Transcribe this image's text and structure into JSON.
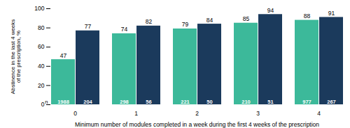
{
  "chart_data": {
    "type": "bar",
    "xlabel": "Minimum number of modules completed in a week during the first 4 weeks of the prescription",
    "ylabel": "Abstinence in the last 4 weeks\nof the prescription, %",
    "categories": [
      "0",
      "1",
      "2",
      "3",
      "4"
    ],
    "series": [
      {
        "color": "#3cb99a",
        "values": [
          47,
          74,
          79,
          85,
          88
        ],
        "n": [
          1988,
          298,
          221,
          210,
          977
        ]
      },
      {
        "color": "#1b3a5c",
        "values": [
          77,
          82,
          84,
          94,
          91
        ],
        "n": [
          204,
          56,
          50,
          51,
          267
        ]
      }
    ],
    "n_label": "n",
    "ylim": [
      0,
      100
    ],
    "yticks": [
      0,
      20,
      40,
      60,
      80,
      100
    ],
    "data_labels": true,
    "grid": false
  }
}
